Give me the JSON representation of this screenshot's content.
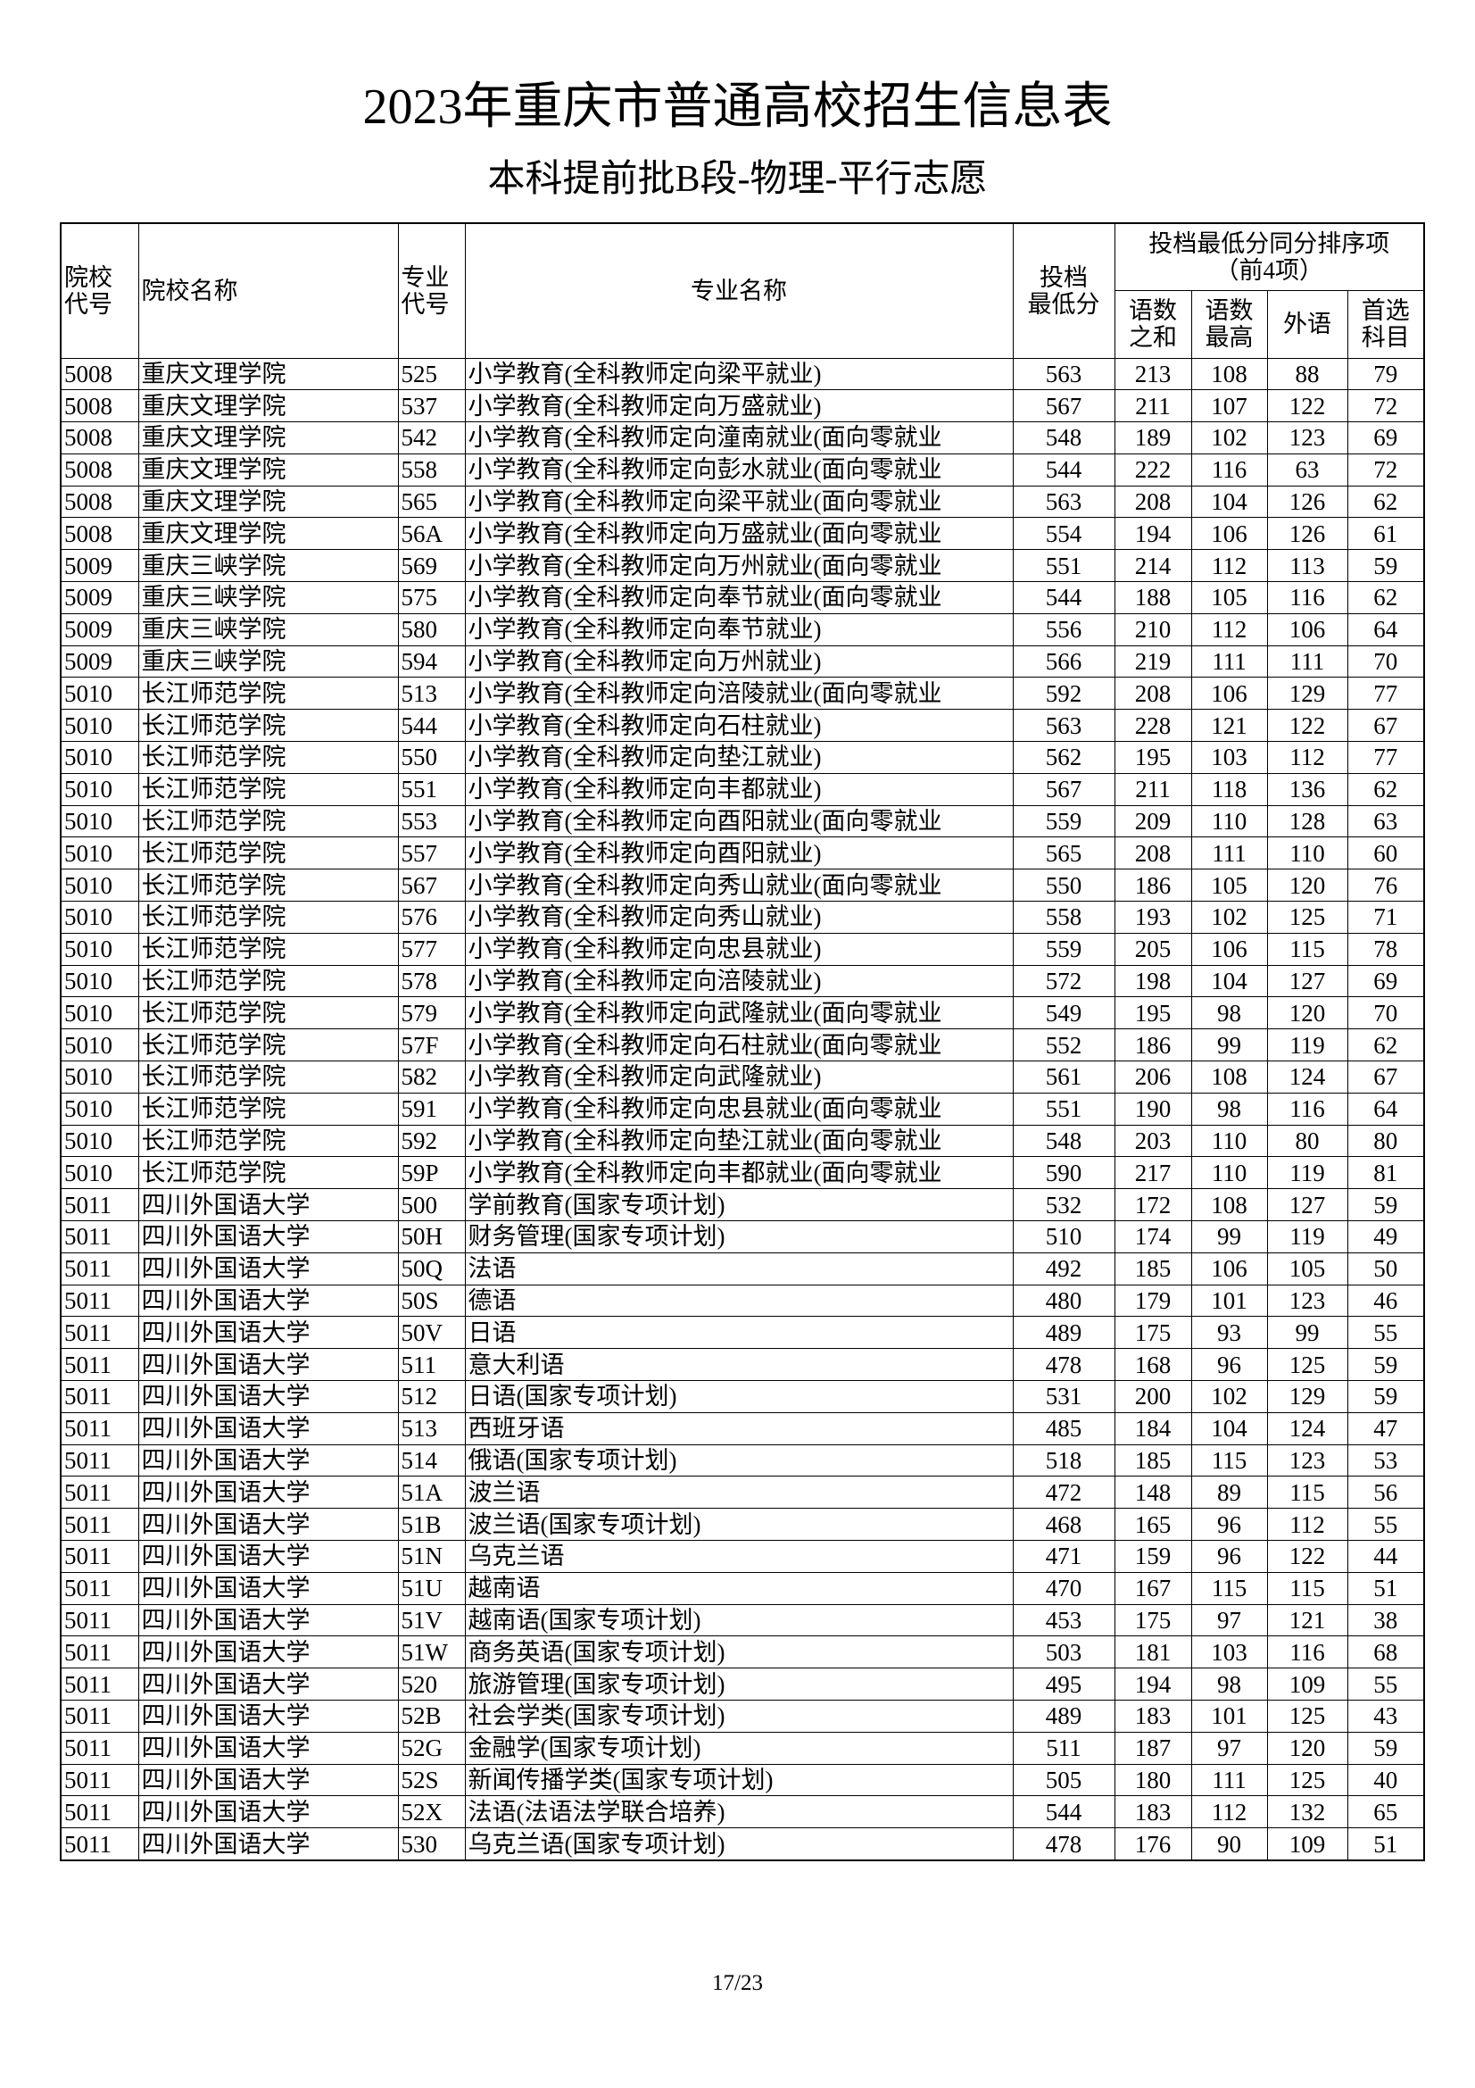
{
  "header": {
    "title": "2023年重庆市普通高校招生信息表",
    "subtitle": "本科提前批B段-物理-平行志愿"
  },
  "table": {
    "columns": [
      [
        "院校",
        "代号"
      ],
      [
        "院校名称"
      ],
      [
        "专业",
        "代号"
      ],
      [
        "专业名称"
      ],
      [
        "投档",
        "最低分"
      ]
    ],
    "group": [
      "投档最低分同分排序项",
      "（前4项）"
    ],
    "subcolumns": [
      [
        "语数",
        "之和"
      ],
      [
        "语数",
        "最高"
      ],
      [
        "外语"
      ],
      [
        "首选",
        "科目"
      ]
    ],
    "rows": [
      [
        "5008",
        "重庆文理学院",
        "525",
        "小学教育(全科教师定向梁平就业)",
        563,
        213,
        108,
        88,
        79
      ],
      [
        "5008",
        "重庆文理学院",
        "537",
        "小学教育(全科教师定向万盛就业)",
        567,
        211,
        107,
        122,
        72
      ],
      [
        "5008",
        "重庆文理学院",
        "542",
        "小学教育(全科教师定向潼南就业(面向零就业",
        548,
        189,
        102,
        123,
        69
      ],
      [
        "5008",
        "重庆文理学院",
        "558",
        "小学教育(全科教师定向彭水就业(面向零就业",
        544,
        222,
        116,
        63,
        72
      ],
      [
        "5008",
        "重庆文理学院",
        "565",
        "小学教育(全科教师定向梁平就业(面向零就业",
        563,
        208,
        104,
        126,
        62
      ],
      [
        "5008",
        "重庆文理学院",
        "56A",
        "小学教育(全科教师定向万盛就业(面向零就业",
        554,
        194,
        106,
        126,
        61
      ],
      [
        "5009",
        "重庆三峡学院",
        "569",
        "小学教育(全科教师定向万州就业(面向零就业",
        551,
        214,
        112,
        113,
        59
      ],
      [
        "5009",
        "重庆三峡学院",
        "575",
        "小学教育(全科教师定向奉节就业(面向零就业",
        544,
        188,
        105,
        116,
        62
      ],
      [
        "5009",
        "重庆三峡学院",
        "580",
        "小学教育(全科教师定向奉节就业)",
        556,
        210,
        112,
        106,
        64
      ],
      [
        "5009",
        "重庆三峡学院",
        "594",
        "小学教育(全科教师定向万州就业)",
        566,
        219,
        111,
        111,
        70
      ],
      [
        "5010",
        "长江师范学院",
        "513",
        "小学教育(全科教师定向涪陵就业(面向零就业",
        592,
        208,
        106,
        129,
        77
      ],
      [
        "5010",
        "长江师范学院",
        "544",
        "小学教育(全科教师定向石柱就业)",
        563,
        228,
        121,
        122,
        67
      ],
      [
        "5010",
        "长江师范学院",
        "550",
        "小学教育(全科教师定向垫江就业)",
        562,
        195,
        103,
        112,
        77
      ],
      [
        "5010",
        "长江师范学院",
        "551",
        "小学教育(全科教师定向丰都就业)",
        567,
        211,
        118,
        136,
        62
      ],
      [
        "5010",
        "长江师范学院",
        "553",
        "小学教育(全科教师定向酉阳就业(面向零就业",
        559,
        209,
        110,
        128,
        63
      ],
      [
        "5010",
        "长江师范学院",
        "557",
        "小学教育(全科教师定向酉阳就业)",
        565,
        208,
        111,
        110,
        60
      ],
      [
        "5010",
        "长江师范学院",
        "567",
        "小学教育(全科教师定向秀山就业(面向零就业",
        550,
        186,
        105,
        120,
        76
      ],
      [
        "5010",
        "长江师范学院",
        "576",
        "小学教育(全科教师定向秀山就业)",
        558,
        193,
        102,
        125,
        71
      ],
      [
        "5010",
        "长江师范学院",
        "577",
        "小学教育(全科教师定向忠县就业)",
        559,
        205,
        106,
        115,
        78
      ],
      [
        "5010",
        "长江师范学院",
        "578",
        "小学教育(全科教师定向涪陵就业)",
        572,
        198,
        104,
        127,
        69
      ],
      [
        "5010",
        "长江师范学院",
        "579",
        "小学教育(全科教师定向武隆就业(面向零就业",
        549,
        195,
        98,
        120,
        70
      ],
      [
        "5010",
        "长江师范学院",
        "57F",
        "小学教育(全科教师定向石柱就业(面向零就业",
        552,
        186,
        99,
        119,
        62
      ],
      [
        "5010",
        "长江师范学院",
        "582",
        "小学教育(全科教师定向武隆就业)",
        561,
        206,
        108,
        124,
        67
      ],
      [
        "5010",
        "长江师范学院",
        "591",
        "小学教育(全科教师定向忠县就业(面向零就业",
        551,
        190,
        98,
        116,
        64
      ],
      [
        "5010",
        "长江师范学院",
        "592",
        "小学教育(全科教师定向垫江就业(面向零就业",
        548,
        203,
        110,
        80,
        80
      ],
      [
        "5010",
        "长江师范学院",
        "59P",
        "小学教育(全科教师定向丰都就业(面向零就业",
        590,
        217,
        110,
        119,
        81
      ],
      [
        "5011",
        "四川外国语大学",
        "500",
        "学前教育(国家专项计划)",
        532,
        172,
        108,
        127,
        59
      ],
      [
        "5011",
        "四川外国语大学",
        "50H",
        "财务管理(国家专项计划)",
        510,
        174,
        99,
        119,
        49
      ],
      [
        "5011",
        "四川外国语大学",
        "50Q",
        "法语",
        492,
        185,
        106,
        105,
        50
      ],
      [
        "5011",
        "四川外国语大学",
        "50S",
        "德语",
        480,
        179,
        101,
        123,
        46
      ],
      [
        "5011",
        "四川外国语大学",
        "50V",
        "日语",
        489,
        175,
        93,
        99,
        55
      ],
      [
        "5011",
        "四川外国语大学",
        "511",
        "意大利语",
        478,
        168,
        96,
        125,
        59
      ],
      [
        "5011",
        "四川外国语大学",
        "512",
        "日语(国家专项计划)",
        531,
        200,
        102,
        129,
        59
      ],
      [
        "5011",
        "四川外国语大学",
        "513",
        "西班牙语",
        485,
        184,
        104,
        124,
        47
      ],
      [
        "5011",
        "四川外国语大学",
        "514",
        "俄语(国家专项计划)",
        518,
        185,
        115,
        123,
        53
      ],
      [
        "5011",
        "四川外国语大学",
        "51A",
        "波兰语",
        472,
        148,
        89,
        115,
        56
      ],
      [
        "5011",
        "四川外国语大学",
        "51B",
        "波兰语(国家专项计划)",
        468,
        165,
        96,
        112,
        55
      ],
      [
        "5011",
        "四川外国语大学",
        "51N",
        "乌克兰语",
        471,
        159,
        96,
        122,
        44
      ],
      [
        "5011",
        "四川外国语大学",
        "51U",
        "越南语",
        470,
        167,
        115,
        115,
        51
      ],
      [
        "5011",
        "四川外国语大学",
        "51V",
        "越南语(国家专项计划)",
        453,
        175,
        97,
        121,
        38
      ],
      [
        "5011",
        "四川外国语大学",
        "51W",
        "商务英语(国家专项计划)",
        503,
        181,
        103,
        116,
        68
      ],
      [
        "5011",
        "四川外国语大学",
        "520",
        "旅游管理(国家专项计划)",
        495,
        194,
        98,
        109,
        55
      ],
      [
        "5011",
        "四川外国语大学",
        "52B",
        "社会学类(国家专项计划)",
        489,
        183,
        101,
        125,
        43
      ],
      [
        "5011",
        "四川外国语大学",
        "52G",
        "金融学(国家专项计划)",
        511,
        187,
        97,
        120,
        59
      ],
      [
        "5011",
        "四川外国语大学",
        "52S",
        "新闻传播学类(国家专项计划)",
        505,
        180,
        111,
        125,
        40
      ],
      [
        "5011",
        "四川外国语大学",
        "52X",
        "法语(法语法学联合培养)",
        544,
        183,
        112,
        132,
        65
      ],
      [
        "5011",
        "四川外国语大学",
        "530",
        "乌克兰语(国家专项计划)",
        478,
        176,
        90,
        109,
        51
      ]
    ]
  },
  "footer": {
    "page": "17/23"
  }
}
